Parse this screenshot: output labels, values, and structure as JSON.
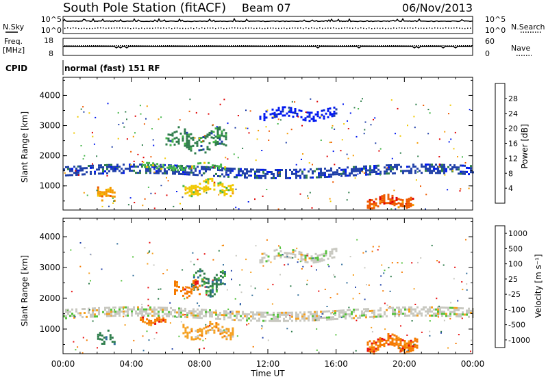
{
  "header": {
    "station": "South Pole Station (fitACF)",
    "beam": "Beam 07",
    "date": "06/Nov/2013"
  },
  "noise_panel": {
    "left_label": "N.Sky",
    "right_label": "N.Search",
    "left_ticks": [
      "10^5",
      "10^0"
    ],
    "right_ticks": [
      "10^5",
      "10^0"
    ]
  },
  "freq_panel": {
    "left_label_1": "Freq.",
    "left_label_2": "[MHz]",
    "right_label": "Nave",
    "left_ticks": [
      "18",
      "8"
    ],
    "right_ticks": [
      "60",
      "0"
    ]
  },
  "cpid": {
    "label": "CPID",
    "value": "normal (fast) 151 RF"
  },
  "colors": {
    "power_scale": [
      "#0018f0",
      "#1f3fa8",
      "#2e7d4b",
      "#44b648",
      "#f0c800",
      "#f59a00",
      "#ee5a00",
      "#e00000"
    ],
    "velocity_scale": [
      "#1f3fa8",
      "#2e6c9a",
      "#2e7d4b",
      "#55c23c",
      "#c8c8c0",
      "#f5a020",
      "#f57a00",
      "#e81010"
    ]
  },
  "chart_data": [
    {
      "type": "heatmap",
      "name": "power",
      "xlabel": "",
      "ylabel": "Slant Range [km]",
      "ylim": [
        200,
        4600
      ],
      "xlim": [
        0,
        24
      ],
      "y_ticks": [
        "1000",
        "2000",
        "3000",
        "4000"
      ],
      "x_ticks": [
        "00:00",
        "04:00",
        "08:00",
        "12:00",
        "16:00",
        "20:00",
        "00:00"
      ],
      "colorbar_label": "Power [dB]",
      "colorbar_ticks": [
        "4",
        "8",
        "12",
        "16",
        "20",
        "24",
        "28"
      ],
      "features": [
        {
          "t0": 0.0,
          "t1": 24.0,
          "r": 1500,
          "dr": 150,
          "level": 1,
          "density": 0.55
        },
        {
          "t0": 4.5,
          "t1": 9.5,
          "r": 1650,
          "dr": 90,
          "level": 3,
          "density": 0.5
        },
        {
          "t0": 2.0,
          "t1": 3.0,
          "r": 750,
          "dr": 150,
          "level": 5,
          "density": 0.6
        },
        {
          "t0": 7.0,
          "t1": 10.0,
          "r": 950,
          "dr": 200,
          "level": 4,
          "density": 0.55
        },
        {
          "t0": 17.8,
          "t1": 20.5,
          "r": 500,
          "dr": 150,
          "level": 6,
          "density": 0.7
        },
        {
          "t0": 11.5,
          "t1": 16.0,
          "r": 3400,
          "dr": 150,
          "level": 0,
          "density": 0.45
        },
        {
          "t0": 6.0,
          "t1": 9.5,
          "r": 2500,
          "dr": 300,
          "level": 2,
          "density": 0.45
        }
      ]
    },
    {
      "type": "heatmap",
      "name": "velocity",
      "xlabel": "Time UT",
      "ylabel": "Slant Range [km]",
      "ylim": [
        200,
        4600
      ],
      "xlim": [
        0,
        24
      ],
      "y_ticks": [
        "1000",
        "2000",
        "3000",
        "4000"
      ],
      "x_ticks": [
        "00:00",
        "04:00",
        "08:00",
        "12:00",
        "16:00",
        "20:00",
        "00:00"
      ],
      "colorbar_label": "Velocity [m s⁻¹]",
      "colorbar_ticks": [
        "1000",
        "500",
        "100",
        "25",
        "-25",
        "-100",
        "-500",
        "-1000"
      ],
      "features": [
        {
          "t0": 0.0,
          "t1": 24.0,
          "r": 1500,
          "dr": 150,
          "level": 4,
          "density": 0.6
        },
        {
          "t0": 4.5,
          "t1": 6.0,
          "r": 1250,
          "dr": 100,
          "level": 6,
          "density": 0.7
        },
        {
          "t0": 2.0,
          "t1": 3.0,
          "r": 750,
          "dr": 150,
          "level": 2,
          "density": 0.6
        },
        {
          "t0": 7.0,
          "t1": 10.0,
          "r": 950,
          "dr": 200,
          "level": 5,
          "density": 0.55
        },
        {
          "t0": 17.8,
          "t1": 20.8,
          "r": 550,
          "dr": 200,
          "level": 6,
          "density": 0.7
        },
        {
          "t0": 11.5,
          "t1": 16.0,
          "r": 3400,
          "dr": 150,
          "level": 4,
          "density": 0.45
        },
        {
          "t0": 7.5,
          "t1": 9.5,
          "r": 2500,
          "dr": 300,
          "level": 2,
          "density": 0.5
        },
        {
          "t0": 6.5,
          "t1": 8.0,
          "r": 2300,
          "dr": 200,
          "level": 6,
          "density": 0.45
        }
      ]
    }
  ]
}
